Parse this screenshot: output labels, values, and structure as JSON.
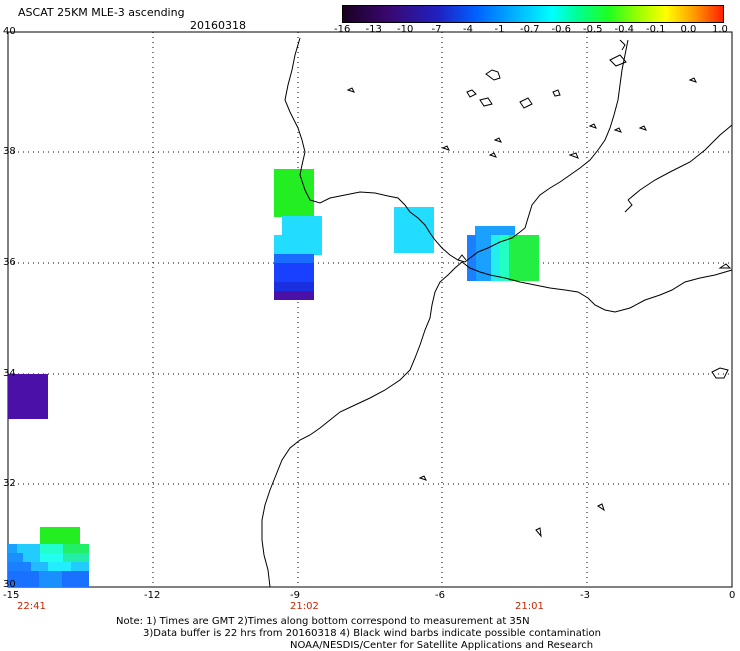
{
  "header": {
    "title": "ASCAT 25KM MLE-3 ascending",
    "date": "20160318"
  },
  "colorbar": {
    "labels": [
      "-16",
      "-13",
      "-10",
      "-7",
      "-4",
      "-1",
      "-0.7",
      "-0.6",
      "-0.5",
      "-0.4",
      "-0.1",
      "0.0",
      "1.0"
    ],
    "colors": [
      "#2a0a3a",
      "#4b0a8c",
      "#1a10c8",
      "#0040ff",
      "#0090ff",
      "#00d0ff",
      "#00ffe0",
      "#00ff90",
      "#20ff20",
      "#a0ff00",
      "#ffff00",
      "#ffa000",
      "#ff3000"
    ]
  },
  "map": {
    "lat_labels": [
      "40",
      "38",
      "36",
      "34",
      "32",
      "30"
    ],
    "lon_labels": [
      "-15",
      "-12",
      "-9",
      "-6",
      "-3",
      "0"
    ],
    "times": [
      {
        "label": "22:41",
        "lon": -14.3
      },
      {
        "label": "21:02",
        "lon": -9.1
      },
      {
        "label": "21:01",
        "lon": -4.7
      }
    ]
  },
  "footer": {
    "line1": "Note: 1) Times are GMT 2)Times along bottom correspond to measurement at 35N",
    "line2": "3)Data buffer is 22 hrs from 20160318 4) Black wind barbs indicate possible contamination",
    "line3": "NOAA/NESDIS/Center for Satellite Applications and Research"
  }
}
